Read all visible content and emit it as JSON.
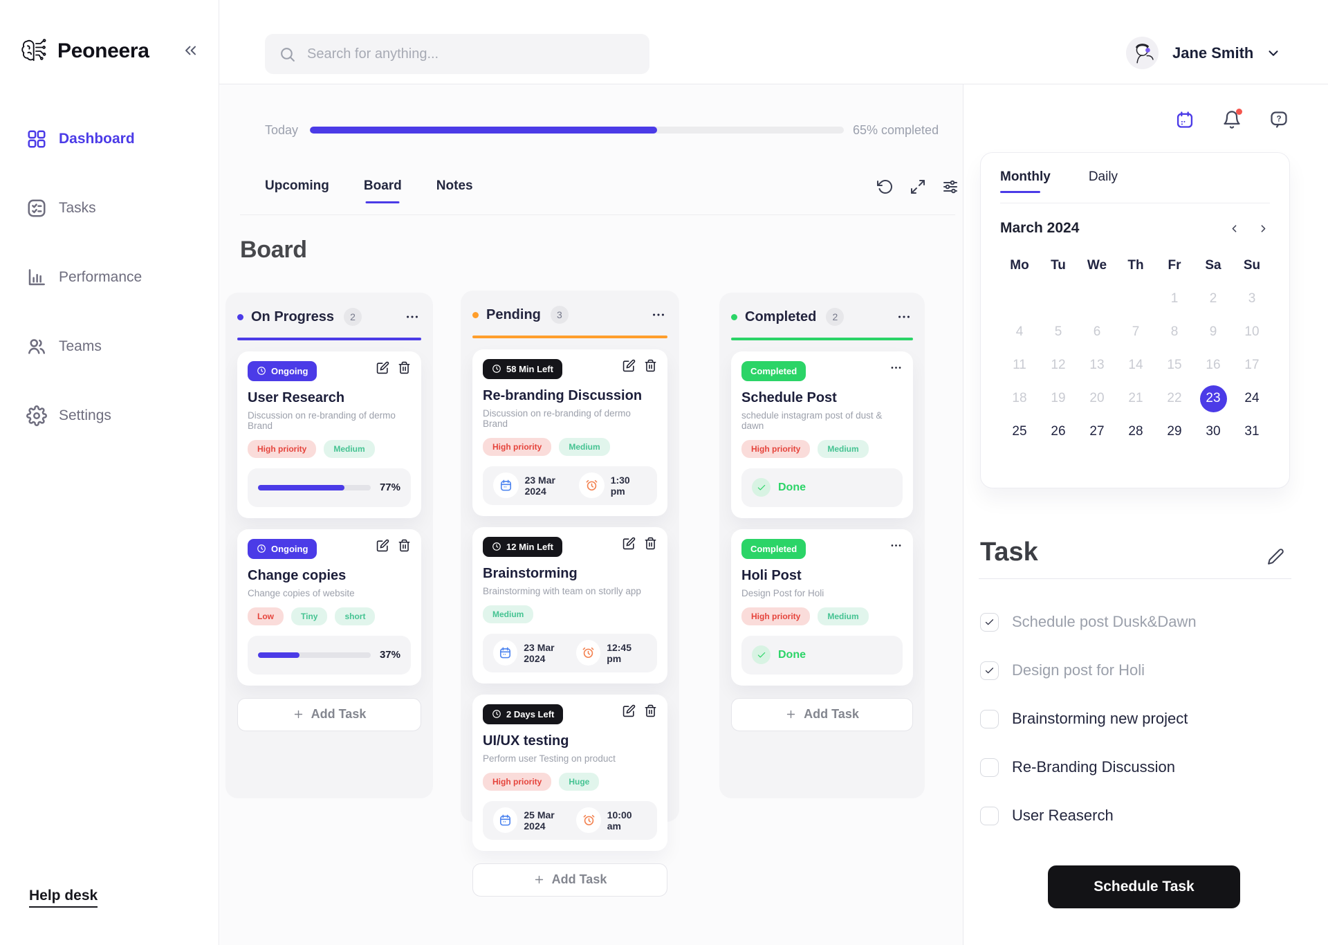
{
  "brand": {
    "name": "Peoneera"
  },
  "search": {
    "placeholder": "Search for anything..."
  },
  "user": {
    "name": "Jane Smith"
  },
  "header_icons": {
    "notifications_has_unread": true
  },
  "sidebar": {
    "items": [
      {
        "label": "Dashboard",
        "icon": "dashboard",
        "active": true
      },
      {
        "label": "Tasks",
        "icon": "tasks",
        "active": false
      },
      {
        "label": "Performance",
        "icon": "performance",
        "active": false
      },
      {
        "label": "Teams",
        "icon": "teams",
        "active": false
      },
      {
        "label": "Settings",
        "icon": "settings",
        "active": false
      }
    ],
    "help_label": "Help desk"
  },
  "progress": {
    "label": "Today",
    "percent": 65,
    "completed_text": "65% completed"
  },
  "view_tabs": [
    {
      "label": "Upcoming",
      "active": false
    },
    {
      "label": "Board",
      "active": true
    },
    {
      "label": "Notes",
      "active": false
    }
  ],
  "board": {
    "title": "Board",
    "add_task_label": "Add Task",
    "columns": [
      {
        "name": "On Progress",
        "count": 2,
        "color": "#4b3be7",
        "actions": "edit-delete",
        "cards": [
          {
            "badge": {
              "label": "Ongoing",
              "style": "ongoing"
            },
            "title": "User Research",
            "desc": "Discussion on re-branding of dermo Brand",
            "tags": [
              {
                "label": "High priority",
                "style": "red"
              },
              {
                "label": "Medium",
                "style": "mint"
              }
            ],
            "progress": 77,
            "progress_label": "77%"
          },
          {
            "badge": {
              "label": "Ongoing",
              "style": "ongoing"
            },
            "title": "Change copies",
            "desc": "Change copies of website",
            "tags": [
              {
                "label": "Low",
                "style": "red"
              },
              {
                "label": "Tiny",
                "style": "mint"
              },
              {
                "label": "short",
                "style": "mint"
              }
            ],
            "progress": 37,
            "progress_label": "37%"
          }
        ]
      },
      {
        "name": "Pending",
        "count": 3,
        "color": "#ff9e2c",
        "actions": "edit-delete",
        "cards": [
          {
            "badge": {
              "label": "58 Min Left",
              "style": "countdown"
            },
            "title": "Re-branding Discussion",
            "desc": "Discussion on re-branding of dermo Brand",
            "tags": [
              {
                "label": "High priority",
                "style": "red"
              },
              {
                "label": "Medium",
                "style": "mint"
              }
            ],
            "date": "23 Mar 2024",
            "time": "1:30 pm"
          },
          {
            "badge": {
              "label": "12 Min Left",
              "style": "countdown"
            },
            "title": "Brainstorming",
            "desc": "Brainstorming with team on storlly app",
            "tags": [
              {
                "label": "Medium",
                "style": "mint"
              }
            ],
            "date": "23 Mar 2024",
            "time": "12:45 pm"
          },
          {
            "badge": {
              "label": "2 Days Left",
              "style": "countdown"
            },
            "title": "UI/UX testing",
            "desc": "Perform user Testing on product",
            "tags": [
              {
                "label": "High priority",
                "style": "red"
              },
              {
                "label": "Huge",
                "style": "mint"
              }
            ],
            "date": "25 Mar 2024",
            "time": "10:00 am"
          }
        ]
      },
      {
        "name": "Completed",
        "count": 2,
        "color": "#2bd467",
        "actions": "menu",
        "cards": [
          {
            "badge": {
              "label": "Completed",
              "style": "completed"
            },
            "title": "Schedule Post",
            "desc": "schedule instagram post of dust & dawn",
            "tags": [
              {
                "label": "High priority",
                "style": "red"
              },
              {
                "label": "Medium",
                "style": "mint"
              }
            ],
            "done_label": "Done"
          },
          {
            "badge": {
              "label": "Completed",
              "style": "completed"
            },
            "title": "Holi Post",
            "desc": "Design Post for Holi",
            "tags": [
              {
                "label": "High priority",
                "style": "red"
              },
              {
                "label": "Medium",
                "style": "mint"
              }
            ],
            "done_label": "Done"
          }
        ]
      }
    ]
  },
  "calendar": {
    "tabs": [
      {
        "label": "Monthly",
        "active": true
      },
      {
        "label": "Daily",
        "active": false
      }
    ],
    "month_label": "March 2024",
    "weekdays": [
      "Mo",
      "Tu",
      "We",
      "Th",
      "Fr",
      "Sa",
      "Su"
    ],
    "weeks": [
      [
        null,
        null,
        null,
        null,
        1,
        2,
        3
      ],
      [
        4,
        5,
        6,
        7,
        8,
        9,
        10
      ],
      [
        11,
        12,
        13,
        14,
        15,
        16,
        17
      ],
      [
        18,
        19,
        20,
        21,
        22,
        23,
        24
      ],
      [
        25,
        26,
        27,
        28,
        29,
        30,
        31
      ]
    ],
    "selected_day": 23,
    "muted_through": 22
  },
  "task_panel": {
    "title": "Task",
    "items": [
      {
        "label": "Schedule post Dusk&Dawn",
        "checked": true
      },
      {
        "label": "Design post for Holi",
        "checked": true
      },
      {
        "label": "Brainstorming new project",
        "checked": false
      },
      {
        "label": "Re-Branding Discussion",
        "checked": false
      },
      {
        "label": "User Reaserch",
        "checked": false
      }
    ],
    "cta_label": "Schedule Task"
  },
  "colors": {
    "accent": "#4b3be7",
    "pending_orange": "#ff9e2c",
    "green": "#2bd467",
    "red_text": "#e5443c",
    "red_bg": "#fadcda",
    "mint_text": "#45c392",
    "mint_bg": "#e1f5ec",
    "countdown_bg": "#15151a",
    "calendar_icon_blue": "#4a82ef",
    "alarm_icon_orange": "#f3814f",
    "notification_dot": "#f4564e"
  }
}
